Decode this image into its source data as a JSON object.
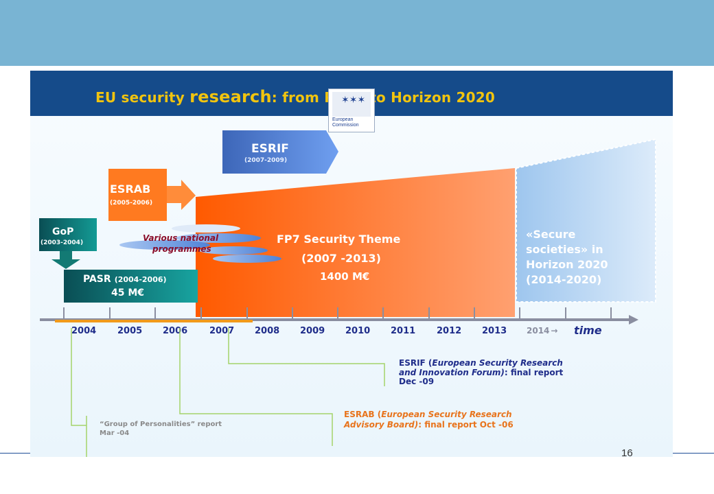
{
  "slide": {
    "title_part1": "EU security ",
    "title_part2": "research",
    "title_part3": ": from PASR to Horizon 2020",
    "logo_line1": "European",
    "logo_line2": "Commission",
    "page_number": "16"
  },
  "boxes": {
    "esrif": {
      "label": "ESRIF",
      "years": "(2007-2009)"
    },
    "esrab": {
      "label": "ESRAB",
      "years": "(2005-2006)"
    },
    "gop": {
      "label": "GoP",
      "years": "(2003-2004)"
    },
    "pasr": {
      "label": "PASR",
      "years": "(2004-2006)",
      "budget": "45 M€"
    },
    "national": {
      "line1": "Various national",
      "line2": "programmes"
    },
    "fp7": {
      "line1": "FP7 Security Theme",
      "line2": "(2007 -2013)",
      "line3": "1400 M€"
    },
    "horizon": {
      "line1": "«Secure",
      "line2": "societies» in",
      "line3": "Horizon 2020",
      "line4": "(2014-2020)"
    }
  },
  "timeline": {
    "years": [
      "2004",
      "2005",
      "2006",
      "2007",
      "2008",
      "2009",
      "2010",
      "2011",
      "2012",
      "2013"
    ],
    "year_2014": "2014",
    "arrow": "→",
    "time_label": "time"
  },
  "notes": {
    "esrif": {
      "line1_label": "ESRIF (",
      "line1_italic": "European Security Research",
      "line2_italic": "and Innovation Forum)",
      "line2_rest": ": final report",
      "line3": "Dec -09"
    },
    "esrab": {
      "line1_label": "ESRAB (",
      "line1_italic": "European Security Research",
      "line2_italic": "Advisory Board)",
      "line2_rest": ": final report Oct -06"
    },
    "gop": {
      "line1": "“Group of Personalities” report",
      "line2": "Mar -04"
    }
  },
  "colors": {
    "top_band": "#79b4d3",
    "title_bar": "#154b8a",
    "title_text": "#f1c40f",
    "navy_text": "#1f2d8a",
    "orange": "#ff6a00",
    "teal": "#0f8a86",
    "green_leader": "#a4d36a"
  }
}
